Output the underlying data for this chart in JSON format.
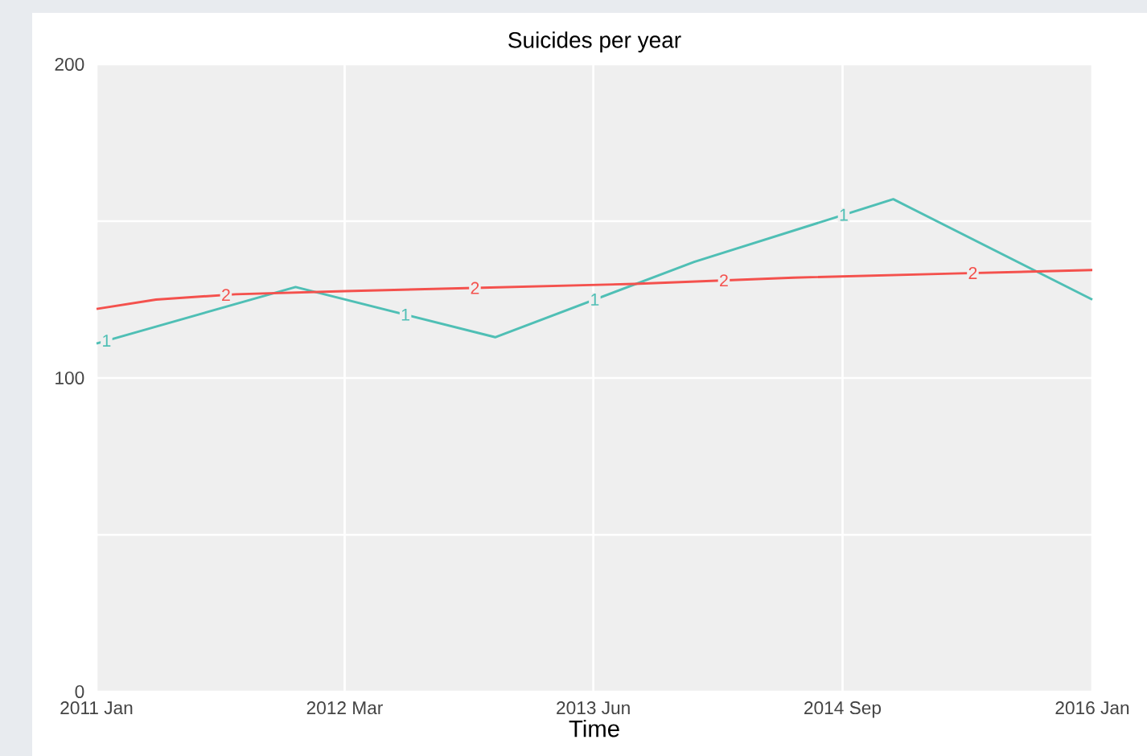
{
  "chart_data": {
    "type": "line",
    "title": "Suicides per year",
    "xlabel": "Time",
    "xlim": [
      "2011-01-01",
      "2016-01-01"
    ],
    "xticks": [
      {
        "value": "2011-01-01",
        "label": "2011 Jan"
      },
      {
        "value": "2012-03-31",
        "label": "2012 Mar"
      },
      {
        "value": "2013-06-30",
        "label": "2013 Jun"
      },
      {
        "value": "2014-09-30",
        "label": "2014 Sep"
      },
      {
        "value": "2016-01-01",
        "label": "2016 Jan"
      }
    ],
    "ylim": [
      0,
      200
    ],
    "yticks": [
      0,
      {
        "value": 50,
        "label": null
      },
      100,
      {
        "value": 150,
        "label": null
      },
      200
    ],
    "grid": true,
    "legend": false,
    "marker": "none",
    "line_style": "solid",
    "series": [
      {
        "name": "1",
        "color": "#4fbfb5",
        "x": [
          "2011-01-01",
          "2012-01-01",
          "2013-01-01",
          "2014-01-01",
          "2015-01-01",
          "2016-01-01"
        ],
        "values": [
          111,
          129,
          113,
          137,
          157,
          125
        ]
      },
      {
        "name": "2",
        "color": "#f4514d",
        "x": [
          "2011-01-01",
          "2011-04-20",
          "2011-09-13",
          "2012-04-01",
          "2012-11-24",
          "2013-09-13",
          "2014-07-02",
          "2015-04-20",
          "2016-01-01"
        ],
        "values": [
          122,
          125,
          126.7,
          127.7,
          128.7,
          130,
          132,
          133.3,
          134.4
        ]
      }
    ]
  }
}
